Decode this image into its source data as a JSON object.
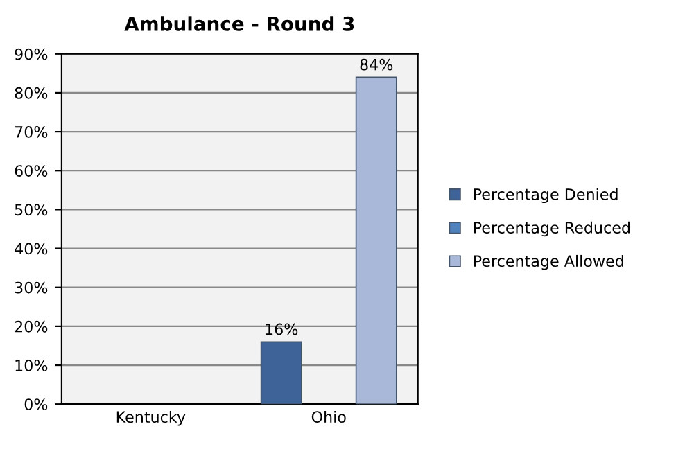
{
  "chart_data": {
    "type": "bar",
    "title": "Ambulance - Round 3",
    "categories": [
      "Kentucky",
      "Ohio"
    ],
    "series": [
      {
        "name": "Percentage Denied",
        "color": "#3e6399",
        "values": [
          null,
          16
        ],
        "value_labels": [
          null,
          "16%"
        ]
      },
      {
        "name": "Percentage Reduced",
        "color": "#4f81bd",
        "values": [
          null,
          null
        ],
        "value_labels": [
          null,
          null
        ]
      },
      {
        "name": "Percentage Allowed",
        "color": "#a9b8d8",
        "values": [
          null,
          84
        ],
        "value_labels": [
          null,
          "84%"
        ]
      }
    ],
    "ylim": [
      0,
      90
    ],
    "yticks": [
      {
        "value": 0,
        "label": "0%"
      },
      {
        "value": 10,
        "label": "10%"
      },
      {
        "value": 20,
        "label": "20%"
      },
      {
        "value": 30,
        "label": "30%"
      },
      {
        "value": 40,
        "label": "40%"
      },
      {
        "value": 50,
        "label": "50%"
      },
      {
        "value": 60,
        "label": "60%"
      },
      {
        "value": 70,
        "label": "70%"
      },
      {
        "value": 80,
        "label": "80%"
      },
      {
        "value": 90,
        "label": "90%"
      }
    ],
    "grid": "y",
    "legend": "right"
  }
}
